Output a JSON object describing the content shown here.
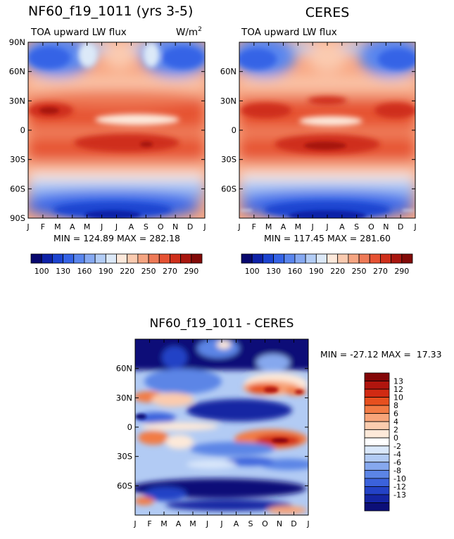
{
  "chart_data": [
    {
      "type": "heatmap",
      "title": "NF60_f19_1011 (yrs 3-5)",
      "subtitle": "TOA upward LW flux",
      "units_label": "W/m",
      "units_exp": "2",
      "x_ticks": [
        "J",
        "F",
        "M",
        "A",
        "M",
        "J",
        "J",
        "A",
        "S",
        "O",
        "N",
        "D",
        "J"
      ],
      "y_ticks": [
        "90N",
        "60N",
        "30N",
        "0",
        "30S",
        "60S",
        "90S"
      ],
      "ylim": [
        -90,
        90
      ],
      "stats": "MIN = 124.89 MAX = 282.18",
      "colorbar_labels": [
        "100",
        "130",
        "160",
        "190",
        "220",
        "250",
        "270",
        "290"
      ]
    },
    {
      "type": "heatmap",
      "title": "CERES",
      "subtitle": "TOA upward LW flux",
      "x_ticks": [
        "J",
        "F",
        "M",
        "A",
        "M",
        "J",
        "J",
        "A",
        "S",
        "O",
        "N",
        "D",
        "J"
      ],
      "y_ticks": [
        "60N",
        "30N",
        "0",
        "30S",
        "60S"
      ],
      "ylim": [
        -90,
        90
      ],
      "stats": "MIN = 117.45 MAX = 281.60",
      "colorbar_labels": [
        "100",
        "130",
        "160",
        "190",
        "220",
        "250",
        "270",
        "290"
      ]
    },
    {
      "type": "heatmap",
      "title": "NF60_f19_1011 - CERES",
      "x_ticks": [
        "J",
        "F",
        "M",
        "A",
        "M",
        "J",
        "J",
        "A",
        "S",
        "O",
        "N",
        "D",
        "J"
      ],
      "y_ticks": [
        "60N",
        "30N",
        "0",
        "30S",
        "60S"
      ],
      "ylim": [
        -90,
        90
      ],
      "stats": "MIN = -27.12 MAX =  17.33",
      "colorbar_labels": [
        "13",
        "12",
        "10",
        "8",
        "6",
        "4",
        "2",
        "0",
        "-2",
        "-4",
        "-6",
        "-8",
        "-10",
        "-12",
        "-13"
      ]
    }
  ],
  "palette_flux": [
    "#08086e",
    "#0e22a8",
    "#1c44d0",
    "#3563e6",
    "#5a86ee",
    "#86a9f2",
    "#b3cdf6",
    "#dce9f8",
    "#fde9db",
    "#fbcbb0",
    "#f5a582",
    "#ee7a57",
    "#e65233",
    "#cf2f1b",
    "#a8160f",
    "#820a08"
  ],
  "palette_diff": [
    "#830607",
    "#b0150e",
    "#d12a13",
    "#e7501f",
    "#f27b45",
    "#f8a57a",
    "#fbccae",
    "#fde9d9",
    "#ffffff",
    "#d9e7fa",
    "#b2cbf4",
    "#86a8ee",
    "#5c85e6",
    "#3b62dc",
    "#2342c6",
    "#1425a3",
    "#0c0f78"
  ]
}
